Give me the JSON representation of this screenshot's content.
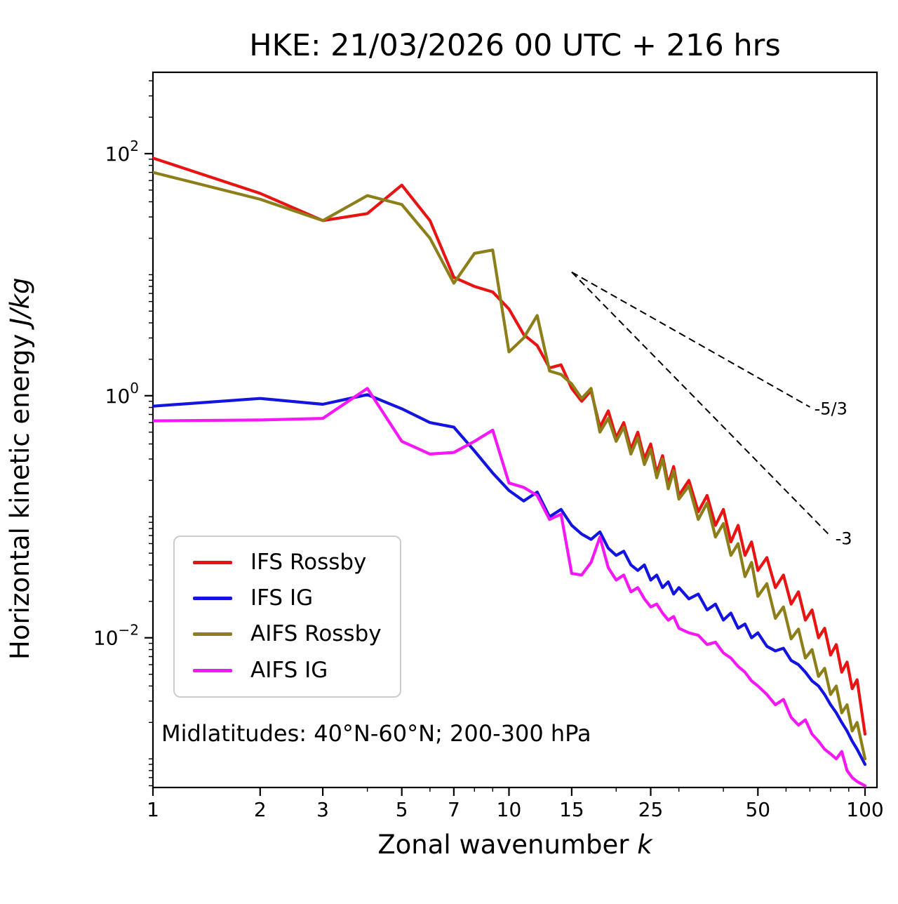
{
  "chart_data": {
    "type": "line",
    "title": "HKE: 21/03/2026 00 UTC + 216 hrs",
    "xlabel": "Zonal wavenumber k",
    "ylabel": "Horizontal kinetic energy J/kg",
    "xlabel_parts": {
      "main": "Zonal wavenumber ",
      "italic": "k"
    },
    "ylabel_parts": {
      "main": "Horizontal kinetic energy ",
      "italic": "J/kg"
    },
    "annotation": "Midlatitudes: 40°N-60°N; 200-300 hPa",
    "xscale": "log",
    "yscale": "log",
    "grid": false,
    "legend_position": "lower left",
    "xlim": [
      1,
      108
    ],
    "ylim": [
      0.00058,
      470
    ],
    "x_ticks": [
      1,
      2,
      3,
      5,
      7,
      10,
      15,
      25,
      50,
      100
    ],
    "x_minor_ticks": [
      4,
      6,
      8,
      9,
      20,
      30,
      40,
      60,
      70,
      80,
      90
    ],
    "y_tick_exponents": [
      2,
      0,
      -2
    ],
    "y_decade_range": [
      -3,
      2
    ],
    "x": [
      1,
      2,
      3,
      4,
      5,
      6,
      7,
      8,
      9,
      10,
      11,
      12,
      13,
      14,
      15,
      16,
      17,
      18,
      19,
      20,
      21,
      22,
      23,
      24,
      25,
      26,
      27,
      28,
      29,
      30,
      32,
      34,
      36,
      38,
      40,
      42,
      44,
      46,
      48,
      50,
      53,
      56,
      59,
      62,
      65,
      68,
      71,
      74,
      77,
      80,
      83,
      86,
      89,
      92,
      95,
      100
    ],
    "series": [
      {
        "name": "IFS Rossby",
        "color": "#e81414",
        "values": [
          92,
          47,
          28,
          32,
          55,
          28,
          9.5,
          8.0,
          7.2,
          5.2,
          3.2,
          2.6,
          1.7,
          1.8,
          1.15,
          0.9,
          1.1,
          0.55,
          0.75,
          0.45,
          0.6,
          0.36,
          0.5,
          0.3,
          0.4,
          0.23,
          0.32,
          0.185,
          0.26,
          0.15,
          0.2,
          0.11,
          0.15,
          0.085,
          0.115,
          0.062,
          0.085,
          0.048,
          0.062,
          0.036,
          0.046,
          0.026,
          0.033,
          0.019,
          0.024,
          0.014,
          0.017,
          0.01,
          0.012,
          0.0072,
          0.0088,
          0.0052,
          0.0063,
          0.0038,
          0.0045,
          0.0016
        ]
      },
      {
        "name": "IFS IG",
        "color": "#1414e0",
        "values": [
          0.82,
          0.95,
          0.85,
          1.02,
          0.78,
          0.6,
          0.55,
          0.35,
          0.23,
          0.165,
          0.135,
          0.16,
          0.1,
          0.115,
          0.085,
          0.072,
          0.065,
          0.075,
          0.055,
          0.048,
          0.052,
          0.04,
          0.036,
          0.04,
          0.03,
          0.033,
          0.026,
          0.029,
          0.023,
          0.026,
          0.021,
          0.023,
          0.017,
          0.019,
          0.014,
          0.016,
          0.012,
          0.013,
          0.01,
          0.011,
          0.0085,
          0.0078,
          0.0082,
          0.0065,
          0.006,
          0.0052,
          0.0044,
          0.004,
          0.0034,
          0.0028,
          0.0024,
          0.002,
          0.0017,
          0.0014,
          0.0012,
          0.0009
        ]
      },
      {
        "name": "AIFS Rossby",
        "color": "#8c7f1a",
        "values": [
          70,
          42,
          28,
          45,
          38,
          20,
          8.5,
          15,
          16,
          2.3,
          3.0,
          4.6,
          1.6,
          1.5,
          1.25,
          0.95,
          1.15,
          0.5,
          0.65,
          0.42,
          0.55,
          0.33,
          0.45,
          0.27,
          0.36,
          0.21,
          0.3,
          0.17,
          0.24,
          0.14,
          0.18,
          0.095,
          0.13,
          0.068,
          0.088,
          0.048,
          0.06,
          0.032,
          0.042,
          0.022,
          0.028,
          0.0145,
          0.018,
          0.0098,
          0.0118,
          0.0068,
          0.008,
          0.0048,
          0.0056,
          0.0034,
          0.004,
          0.0024,
          0.0028,
          0.0017,
          0.002,
          0.001
        ]
      },
      {
        "name": "AIFS IG",
        "color": "#f617f6",
        "values": [
          0.62,
          0.63,
          0.65,
          1.15,
          0.42,
          0.33,
          0.34,
          0.42,
          0.52,
          0.19,
          0.175,
          0.15,
          0.095,
          0.105,
          0.034,
          0.033,
          0.042,
          0.068,
          0.038,
          0.03,
          0.033,
          0.024,
          0.026,
          0.021,
          0.018,
          0.019,
          0.016,
          0.014,
          0.015,
          0.012,
          0.011,
          0.0105,
          0.0088,
          0.0092,
          0.0075,
          0.0068,
          0.0058,
          0.0052,
          0.0044,
          0.004,
          0.0034,
          0.0028,
          0.0031,
          0.0022,
          0.0019,
          0.0021,
          0.0016,
          0.0014,
          0.0012,
          0.0011,
          0.001,
          0.00115,
          0.0008,
          0.0007,
          0.00065,
          0.0006
        ]
      }
    ],
    "slope_guides": [
      {
        "label": "-5/3",
        "x1": 15,
        "y1": 10.5,
        "x2": 70,
        "y2": 0.807,
        "label_x": 72,
        "label_y": 0.78
      },
      {
        "label": "-3",
        "x1": 15,
        "y1": 10.5,
        "x2": 80,
        "y2": 0.069,
        "label_x": 82.5,
        "label_y": 0.066
      }
    ]
  }
}
